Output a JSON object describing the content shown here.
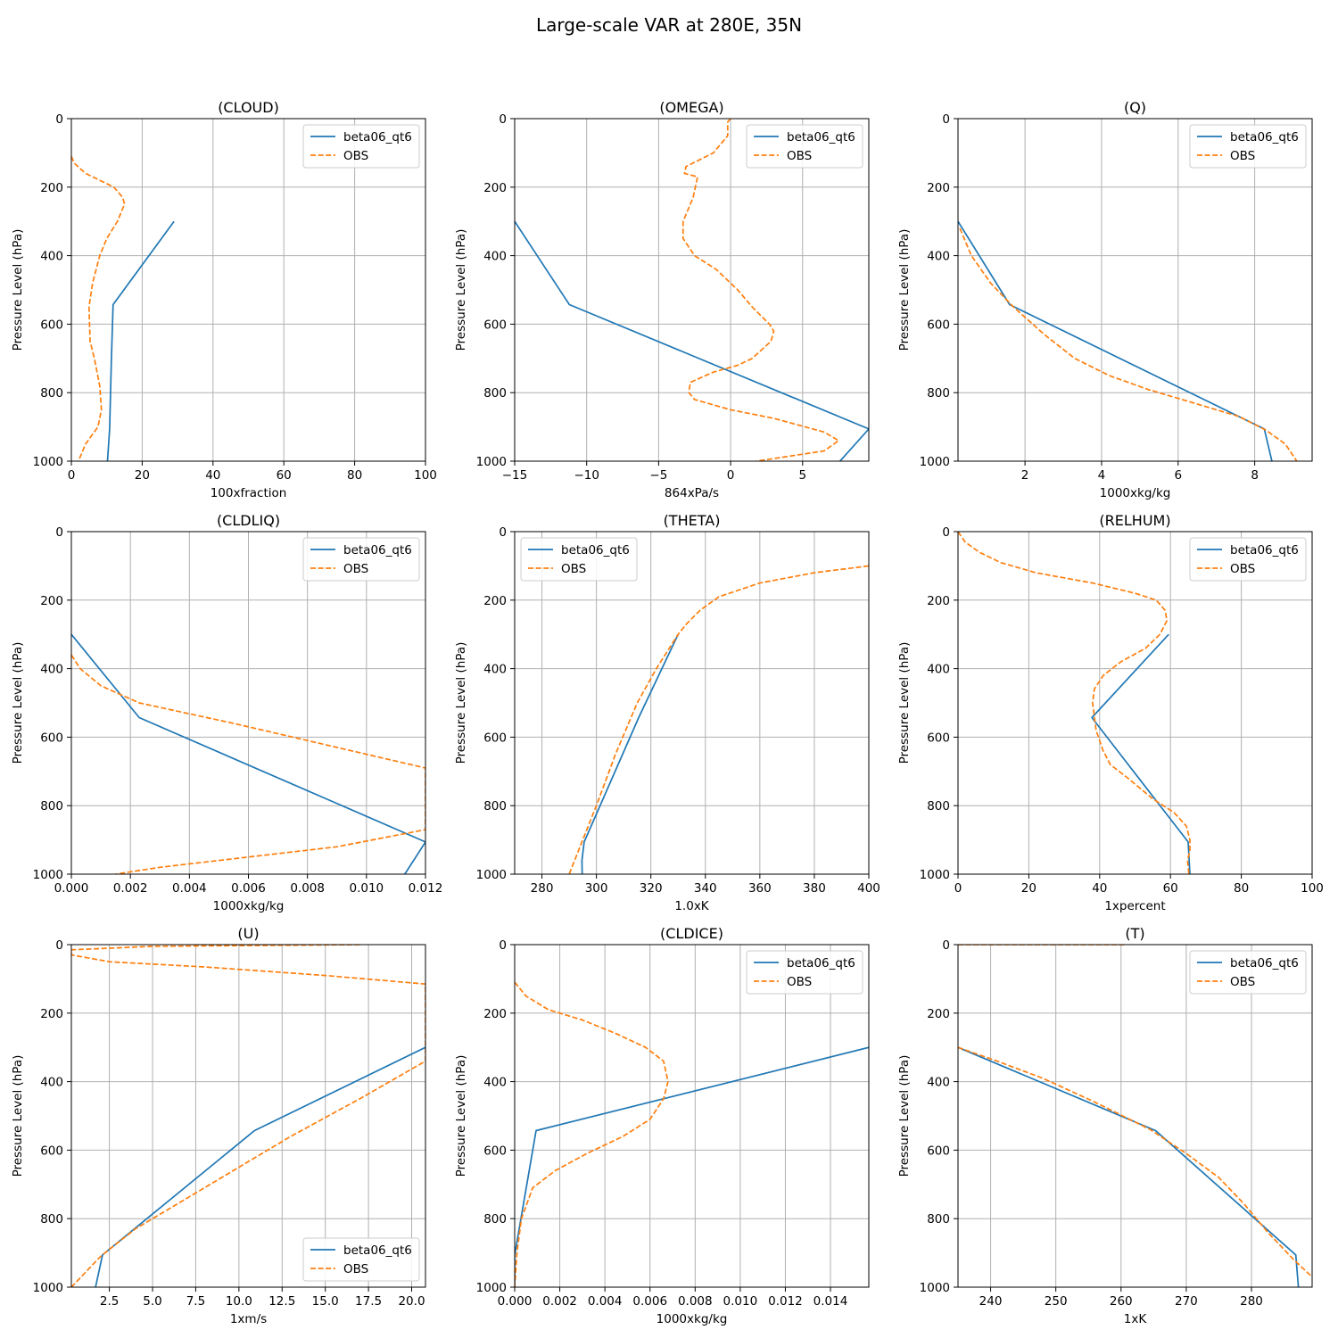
{
  "figure": {
    "title": "Large-scale VAR at 280E, 35N"
  },
  "style": {
    "model_color": "#1f77b4",
    "obs_color": "#ff7f0e",
    "grid_color": "#b0b0b0"
  },
  "chart_data": [
    {
      "type": "line",
      "title": "(CLOUD)",
      "xlabel": "100xfraction",
      "ylabel": "Pressure Level (hPa)",
      "xlim": [
        0,
        100
      ],
      "ylim": [
        1000,
        0
      ],
      "xticks": [
        0,
        20,
        40,
        60,
        80,
        100
      ],
      "xtick_labels": [
        "0",
        "20",
        "40",
        "60",
        "80",
        "100"
      ],
      "yticks": [
        0,
        200,
        400,
        600,
        800,
        1000
      ],
      "ytick_labels": [
        "0",
        "200",
        "400",
        "600",
        "800",
        "1000"
      ],
      "grid": true,
      "legend": "top-right",
      "series": [
        {
          "name": "beta06_qt6",
          "style": "solid",
          "x": [
            29,
            11.8,
            11.3,
            10.8,
            10.2
          ],
          "y": [
            300,
            543,
            700,
            906,
            1000
          ]
        },
        {
          "name": "OBS",
          "style": "dashed",
          "x": [
            0,
            0.8,
            4,
            8,
            12,
            14.5,
            15,
            13,
            10,
            8,
            6,
            5,
            5.3,
            6.5,
            8,
            8.5,
            7.5,
            4,
            2
          ],
          "y": [
            110,
            130,
            160,
            180,
            200,
            230,
            250,
            300,
            350,
            400,
            480,
            550,
            650,
            700,
            780,
            850,
            900,
            950,
            1000
          ]
        }
      ]
    },
    {
      "type": "line",
      "title": "(OMEGA)",
      "xlabel": "864xPa/s",
      "ylabel": "Pressure Level (hPa)",
      "xlim": [
        -15,
        9.6
      ],
      "ylim": [
        1000,
        0
      ],
      "xticks": [
        -15,
        -10,
        -5,
        0,
        5
      ],
      "xtick_labels": [
        "−15",
        "−10",
        "−5",
        "0",
        "5"
      ],
      "yticks": [
        0,
        200,
        400,
        600,
        800,
        1000
      ],
      "ytick_labels": [
        "0",
        "200",
        "400",
        "600",
        "800",
        "1000"
      ],
      "grid": true,
      "legend": "top-right",
      "series": [
        {
          "name": "beta06_qt6",
          "style": "solid",
          "x": [
            -15,
            -11.2,
            9.6,
            7.6
          ],
          "y": [
            300,
            543,
            906,
            1000
          ]
        },
        {
          "name": "OBS",
          "style": "dashed",
          "x": [
            0,
            -0.2,
            -0.2,
            -1.2,
            -3.1,
            -3.2,
            -2.3,
            -2.6,
            -3.3,
            -3.3,
            -2.5,
            -1,
            0.5,
            1.5,
            2.7,
            3,
            2.8,
            1.5,
            0.5,
            -1.2,
            -2.8,
            -2.9,
            -2.5,
            0,
            3,
            6.5,
            7.5,
            6.5,
            1.8
          ],
          "y": [
            0,
            10,
            50,
            100,
            140,
            160,
            170,
            230,
            300,
            350,
            400,
            440,
            500,
            550,
            600,
            620,
            650,
            700,
            720,
            740,
            770,
            800,
            820,
            850,
            875,
            915,
            940,
            970,
            1000
          ]
        }
      ]
    },
    {
      "type": "line",
      "title": "(Q)",
      "xlabel": "1000xkg/kg",
      "ylabel": "Pressure Level (hPa)",
      "xlim": [
        0.25,
        9.5
      ],
      "ylim": [
        1000,
        0
      ],
      "xticks": [
        2,
        4,
        6,
        8
      ],
      "xtick_labels": [
        "2",
        "4",
        "6",
        "8"
      ],
      "yticks": [
        0,
        200,
        400,
        600,
        800,
        1000
      ],
      "ytick_labels": [
        "0",
        "200",
        "400",
        "600",
        "800",
        "1000"
      ],
      "grid": true,
      "legend": "top-right",
      "series": [
        {
          "name": "beta06_qt6",
          "style": "solid",
          "x": [
            0.25,
            1.6,
            8.25,
            8.45
          ],
          "y": [
            300,
            543,
            906,
            1000
          ]
        },
        {
          "name": "OBS",
          "style": "dashed",
          "x": [
            0.3,
            0.6,
            1.1,
            1.7,
            2.5,
            3.3,
            4.2,
            5.2,
            6.4,
            7.6,
            8.3,
            8.8,
            9.1
          ],
          "y": [
            320,
            400,
            480,
            550,
            630,
            700,
            750,
            790,
            830,
            870,
            910,
            950,
            1000
          ]
        }
      ]
    },
    {
      "type": "line",
      "title": "(CLDLIQ)",
      "xlabel": "1000xkg/kg",
      "ylabel": "Pressure Level (hPa)",
      "xlim": [
        0,
        0.012
      ],
      "ylim": [
        1000,
        0
      ],
      "xticks": [
        0,
        0.002,
        0.004,
        0.006,
        0.008,
        0.01,
        0.012
      ],
      "xtick_labels": [
        "0.000",
        "0.002",
        "0.004",
        "0.006",
        "0.008",
        "0.010",
        "0.012"
      ],
      "yticks": [
        0,
        200,
        400,
        600,
        800,
        1000
      ],
      "ytick_labels": [
        "0",
        "200",
        "400",
        "600",
        "800",
        "1000"
      ],
      "grid": true,
      "legend": "top-right",
      "series": [
        {
          "name": "beta06_qt6",
          "style": "solid",
          "x": [
            0,
            0.0023,
            0.012,
            0.0113
          ],
          "y": [
            300,
            543,
            906,
            1000
          ]
        },
        {
          "name": "OBS",
          "style": "dashed",
          "x": [
            0,
            0.0003,
            0.001,
            0.0023,
            0.0055,
            0.008,
            0.012,
            0.012,
            0.009,
            0.006,
            0.003,
            0.0015
          ],
          "y": [
            360,
            400,
            450,
            500,
            560,
            610,
            690,
            870,
            920,
            950,
            980,
            1000
          ]
        }
      ]
    },
    {
      "type": "line",
      "title": "(THETA)",
      "xlabel": "1.0xK",
      "ylabel": "Pressure Level (hPa)",
      "xlim": [
        270,
        400
      ],
      "ylim": [
        1000,
        0
      ],
      "xticks": [
        280,
        300,
        320,
        340,
        360,
        380,
        400
      ],
      "xtick_labels": [
        "280",
        "300",
        "320",
        "340",
        "360",
        "380",
        "400"
      ],
      "yticks": [
        0,
        200,
        400,
        600,
        800,
        1000
      ],
      "ytick_labels": [
        "0",
        "200",
        "400",
        "600",
        "800",
        "1000"
      ],
      "grid": true,
      "legend": "top-left",
      "series": [
        {
          "name": "beta06_qt6",
          "style": "solid",
          "x": [
            330,
            315.5,
            295.5,
            294.7,
            294.8
          ],
          "y": [
            300,
            543,
            906,
            960,
            1000
          ]
        },
        {
          "name": "OBS",
          "style": "dashed",
          "x": [
            400,
            380,
            360,
            345,
            338,
            333,
            330,
            322,
            315,
            307,
            300,
            295,
            292,
            290
          ],
          "y": [
            100,
            120,
            150,
            190,
            230,
            270,
            300,
            400,
            500,
            650,
            800,
            900,
            960,
            1000
          ]
        }
      ]
    },
    {
      "type": "line",
      "title": "(RELHUM)",
      "xlabel": "1xpercent",
      "ylabel": "Pressure Level (hPa)",
      "xlim": [
        0,
        100
      ],
      "ylim": [
        1000,
        0
      ],
      "xticks": [
        0,
        20,
        40,
        60,
        80,
        100
      ],
      "xtick_labels": [
        "0",
        "20",
        "40",
        "60",
        "80",
        "100"
      ],
      "yticks": [
        0,
        200,
        400,
        600,
        800,
        1000
      ],
      "ytick_labels": [
        "0",
        "200",
        "400",
        "600",
        "800",
        "1000"
      ],
      "grid": true,
      "legend": "top-right",
      "series": [
        {
          "name": "beta06_qt6",
          "style": "solid",
          "x": [
            59.5,
            37.8,
            65,
            65.5
          ],
          "y": [
            300,
            543,
            906,
            1000
          ]
        },
        {
          "name": "OBS",
          "style": "dashed",
          "x": [
            0,
            2,
            6,
            12,
            22,
            38,
            50,
            56,
            58.5,
            59,
            57,
            53,
            46,
            41,
            38.5,
            38,
            39,
            41,
            43,
            48,
            55,
            61,
            64.5,
            65.5,
            65.5,
            64.8,
            65.2
          ],
          "y": [
            0,
            30,
            60,
            90,
            120,
            150,
            180,
            200,
            230,
            260,
            300,
            340,
            380,
            420,
            460,
            500,
            580,
            640,
            680,
            720,
            780,
            820,
            860,
            900,
            930,
            960,
            1000
          ]
        }
      ]
    },
    {
      "type": "line",
      "title": "(U)",
      "xlabel": "1xm/s",
      "ylabel": "Pressure Level (hPa)",
      "xlim": [
        0.3,
        20.8
      ],
      "ylim": [
        1000,
        0
      ],
      "xticks": [
        2.5,
        5.0,
        7.5,
        10.0,
        12.5,
        15.0,
        17.5,
        20.0
      ],
      "xtick_labels": [
        "2.5",
        "5.0",
        "7.5",
        "10.0",
        "12.5",
        "15.0",
        "17.5",
        "20.0"
      ],
      "yticks": [
        0,
        200,
        400,
        600,
        800,
        1000
      ],
      "ytick_labels": [
        "0",
        "200",
        "400",
        "600",
        "800",
        "1000"
      ],
      "grid": true,
      "legend": "bottom-right",
      "series": [
        {
          "name": "beta06_qt6",
          "style": "solid",
          "x": [
            20.8,
            10.9,
            2.1,
            1.7
          ],
          "y": [
            300,
            543,
            906,
            1000
          ]
        },
        {
          "name": "OBS",
          "style": "dashed",
          "x": [
            17,
            5,
            0.3,
            0.3,
            2.5,
            8,
            15,
            20.8,
            20.8,
            17,
            13,
            10,
            7,
            4,
            2,
            0.3
          ],
          "y": [
            0,
            5,
            15,
            30,
            50,
            65,
            90,
            115,
            340,
            450,
            560,
            650,
            740,
            830,
            910,
            1000
          ]
        }
      ]
    },
    {
      "type": "line",
      "title": "(CLDICE)",
      "xlabel": "1000xkg/kg",
      "ylabel": "Pressure Level (hPa)",
      "xlim": [
        0,
        0.0157
      ],
      "ylim": [
        1000,
        0
      ],
      "xticks": [
        0,
        0.002,
        0.004,
        0.006,
        0.008,
        0.01,
        0.012,
        0.014
      ],
      "xtick_labels": [
        "0.000",
        "0.002",
        "0.004",
        "0.006",
        "0.008",
        "0.010",
        "0.012",
        "0.014"
      ],
      "yticks": [
        0,
        200,
        400,
        600,
        800,
        1000
      ],
      "ytick_labels": [
        "0",
        "200",
        "400",
        "600",
        "800",
        "1000"
      ],
      "grid": true,
      "legend": "top-right",
      "series": [
        {
          "name": "beta06_qt6",
          "style": "solid",
          "x": [
            0.0157,
            0.00095,
            0,
            0
          ],
          "y": [
            300,
            543,
            906,
            1000
          ]
        },
        {
          "name": "OBS",
          "style": "dashed",
          "x": [
            0,
            0.0005,
            0.0015,
            0.003,
            0.0045,
            0.0058,
            0.0066,
            0.0068,
            0.0066,
            0.006,
            0.0048,
            0.0032,
            0.0018,
            0.0008,
            0.0003,
            0.0001,
            0
          ],
          "y": [
            110,
            150,
            190,
            220,
            260,
            300,
            340,
            400,
            450,
            510,
            560,
            610,
            660,
            710,
            800,
            900,
            1000
          ]
        }
      ]
    },
    {
      "type": "line",
      "title": "(T)",
      "xlabel": "1xK",
      "ylabel": "Pressure Level (hPa)",
      "xlim": [
        235,
        289.3
      ],
      "ylim": [
        1000,
        0
      ],
      "xticks": [
        240,
        250,
        260,
        270,
        280
      ],
      "xtick_labels": [
        "240",
        "250",
        "260",
        "270",
        "280"
      ],
      "yticks": [
        0,
        200,
        400,
        600,
        800,
        1000
      ],
      "ytick_labels": [
        "0",
        "200",
        "400",
        "600",
        "800",
        "1000"
      ],
      "grid": true,
      "legend": "top-right",
      "series": [
        {
          "name": "beta06_qt6",
          "style": "solid",
          "x": [
            235,
            265.3,
            286.8,
            287.2
          ],
          "y": [
            300,
            543,
            906,
            1000
          ]
        },
        {
          "name": "OBS",
          "style": "dashed",
          "x": [
            235,
            241,
            248,
            256,
            264.5,
            270,
            275,
            279,
            282.5,
            286.5,
            289.3
          ],
          "y": [
            300,
            340,
            390,
            460,
            540,
            610,
            680,
            760,
            840,
            920,
            970
          ]
        },
        {
          "name": "",
          "style": "dashed",
          "x": [
            235,
            260.5
          ],
          "y": [
            0,
            0
          ]
        }
      ]
    }
  ]
}
